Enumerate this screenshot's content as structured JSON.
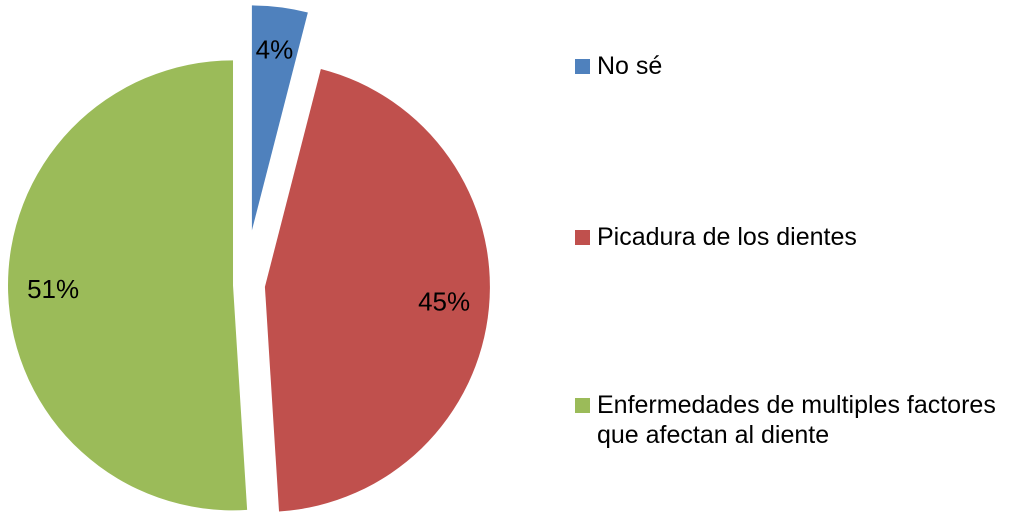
{
  "chart_data": {
    "type": "pie",
    "categories": [
      "No sé",
      "Picadura de los dientes",
      "Enfermedades de multiples factores que afectan al diente"
    ],
    "values": [
      4,
      45,
      51
    ],
    "value_labels": [
      "4%",
      "45%",
      "51%"
    ],
    "colors": [
      "#4f81bd",
      "#c0504d",
      "#9bbb59"
    ],
    "legend": "right"
  }
}
